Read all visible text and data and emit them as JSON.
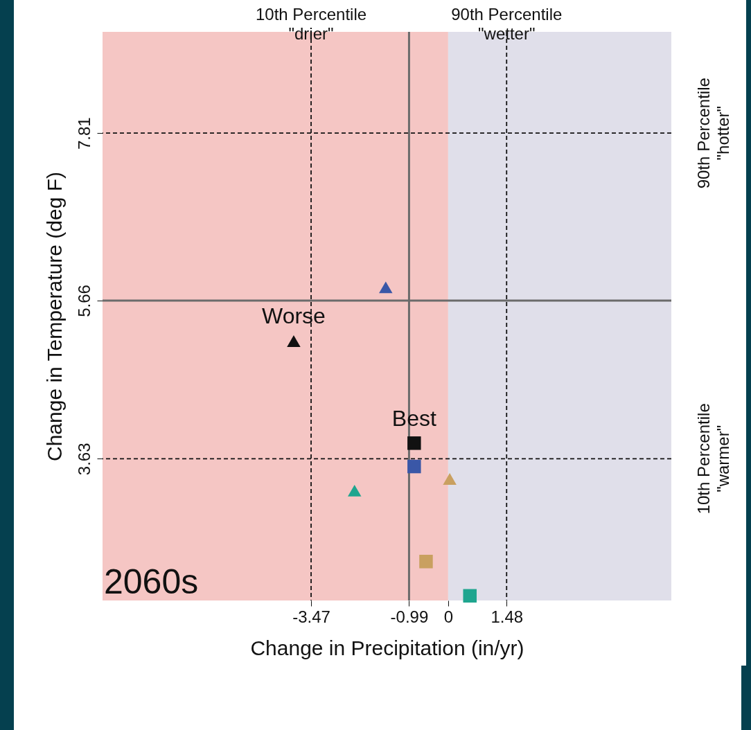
{
  "chart_data": {
    "type": "scatter",
    "xlabel": "Change in Precipitation (in/yr)",
    "ylabel": "Change in Temperature (deg F)",
    "xlim": [
      -8.75,
      5.65
    ],
    "ylim": [
      1.81,
      9.11
    ],
    "xticks": [
      -3.47,
      -0.99,
      0,
      1.48
    ],
    "yticks": [
      3.63,
      5.66,
      7.81
    ],
    "grid": false,
    "bands": [
      {
        "axis": "x",
        "from": -8.75,
        "to": 0,
        "color": "#f5c6c4"
      },
      {
        "axis": "x",
        "from": 0,
        "to": 5.65,
        "color": "#e0dfea"
      }
    ],
    "ref_lines": [
      {
        "axis": "x",
        "value": -3.47,
        "label": "10th Percentile\n\"drier\"",
        "line_style": "dashed",
        "color": "#111111"
      },
      {
        "axis": "x",
        "value": 1.48,
        "label": "90th Percentile\n\"wetter\"",
        "line_style": "dashed",
        "color": "#111111"
      },
      {
        "axis": "y",
        "value": 7.81,
        "label": "90th Percentile\n\"hotter\"",
        "line_style": "dashed",
        "color": "#111111"
      },
      {
        "axis": "y",
        "value": 3.63,
        "label": "10th Percentile\n\"warmer\"",
        "line_style": "dashed",
        "color": "#111111"
      },
      {
        "axis": "x",
        "value": -0.99,
        "line_style": "solid",
        "color": "#6b6b6b"
      },
      {
        "axis": "y",
        "value": 5.66,
        "line_style": "solid",
        "color": "#6b6b6b"
      }
    ],
    "series": [
      {
        "color": "#3a57a7",
        "marker": "triangle",
        "x": [
          -1.58
        ],
        "values": [
          5.83
        ]
      },
      {
        "color": "#111111",
        "marker": "triangle",
        "x": [
          -3.91
        ],
        "values": [
          5.14
        ]
      },
      {
        "color": "#111111",
        "marker": "square",
        "x": [
          -0.86
        ],
        "values": [
          3.83
        ]
      },
      {
        "color": "#3a57a7",
        "marker": "square",
        "x": [
          -0.86
        ],
        "values": [
          3.53
        ]
      },
      {
        "color": "#c9a060",
        "marker": "triangle",
        "x": [
          0.04
        ],
        "values": [
          3.37
        ]
      },
      {
        "color": "#1fa58f",
        "marker": "triangle",
        "x": [
          -2.37
        ],
        "values": [
          3.22
        ]
      },
      {
        "color": "#c9a060",
        "marker": "square",
        "x": [
          -0.56
        ],
        "values": [
          2.31
        ]
      },
      {
        "color": "#1fa58f",
        "marker": "square",
        "x": [
          0.55
        ],
        "values": [
          1.87
        ]
      }
    ],
    "annotations": [
      {
        "text": "Worse",
        "x": -3.91,
        "y": 5.14
      },
      {
        "text": "Best",
        "x": -0.86,
        "y": 3.83
      },
      "2060s"
    ]
  }
}
